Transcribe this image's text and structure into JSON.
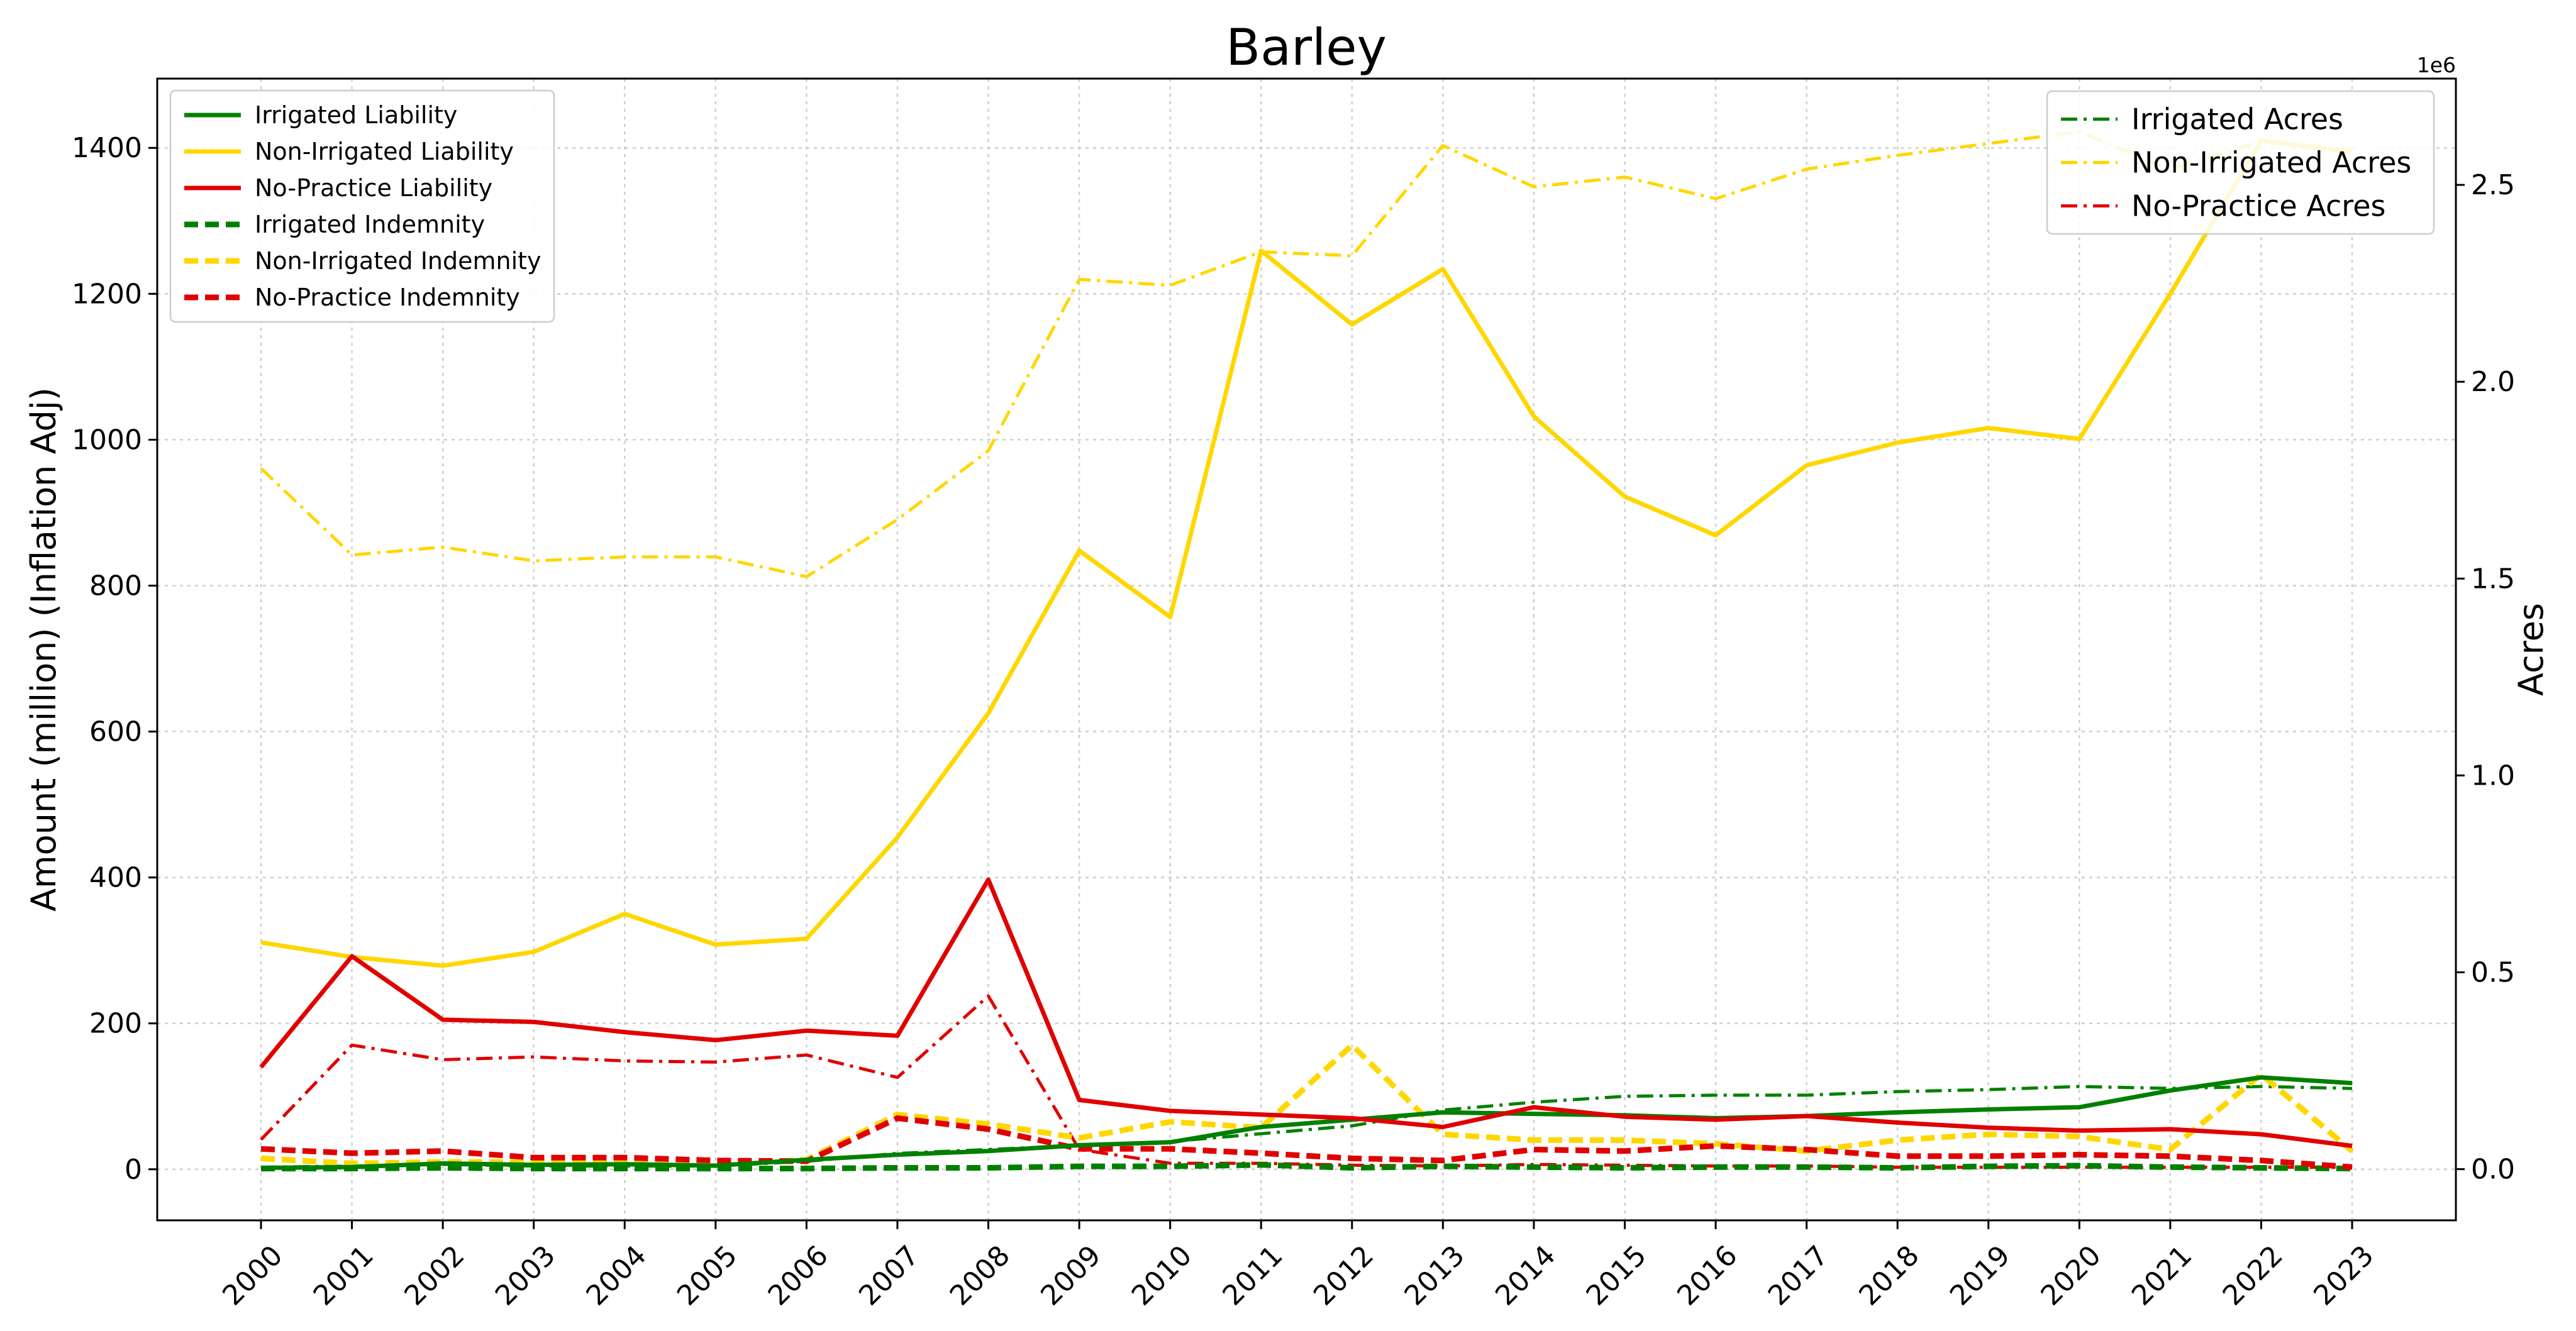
{
  "chart_data": {
    "type": "line",
    "title": "Barley",
    "ylabel": "Amount (million) (Inflation Adj)",
    "y2label": "Acres",
    "y2_offset_label": "1e6",
    "x": [
      "2000",
      "2001",
      "2002",
      "2003",
      "2004",
      "2005",
      "2006",
      "2007",
      "2008",
      "2009",
      "2010",
      "2011",
      "2012",
      "2013",
      "2014",
      "2015",
      "2016",
      "2017",
      "2018",
      "2019",
      "2020",
      "2021",
      "2022",
      "2023"
    ],
    "ylim": [
      -70,
      1495
    ],
    "y_ticks": [
      "0",
      "200",
      "400",
      "600",
      "800",
      "1000",
      "1200",
      "1400"
    ],
    "y2lim": [
      -130000,
      2770000
    ],
    "y2_ticks": [
      "0.0",
      "0.5",
      "1.0",
      "1.5",
      "2.0",
      "2.5"
    ],
    "grid": true,
    "series": [
      {
        "name": "Irrigated Liability",
        "axis": "left",
        "style": "solid",
        "color": "#008000",
        "values": [
          2,
          3,
          8,
          6,
          7,
          5,
          13,
          20,
          25,
          33,
          37,
          58,
          68,
          78,
          76,
          74,
          70,
          73,
          78,
          82,
          85,
          108,
          126,
          118
        ]
      },
      {
        "name": "Non-Irrigated Liability",
        "axis": "left",
        "style": "solid",
        "color": "#FFD700",
        "values": [
          311,
          291,
          279,
          298,
          350,
          308,
          316,
          455,
          625,
          848,
          757,
          1259,
          1158,
          1234,
          1032,
          922,
          869,
          965,
          996,
          1016,
          1001,
          1200,
          1410,
          1395
        ]
      },
      {
        "name": "No-Practice Liability",
        "axis": "left",
        "style": "solid",
        "color": "#E00000",
        "values": [
          140,
          292,
          205,
          202,
          188,
          177,
          190,
          183,
          397,
          95,
          80,
          75,
          70,
          58,
          85,
          72,
          68,
          73,
          64,
          57,
          53,
          55,
          48,
          32
        ]
      },
      {
        "name": "Irrigated Indemnity",
        "axis": "left",
        "style": "dashed",
        "color": "#008000",
        "values": [
          1,
          1,
          2,
          1,
          1,
          1,
          1,
          2,
          2,
          4,
          4,
          6,
          2,
          4,
          3,
          2,
          3,
          3,
          2,
          4,
          5,
          3,
          2,
          1
        ]
      },
      {
        "name": "Non-Irrigated Indemnity",
        "axis": "left",
        "style": "dashed",
        "color": "#FFD700",
        "values": [
          15,
          8,
          10,
          10,
          8,
          7,
          13,
          75,
          62,
          43,
          65,
          57,
          170,
          48,
          40,
          40,
          35,
          25,
          40,
          48,
          45,
          27,
          130,
          25
        ]
      },
      {
        "name": "No-Practice Indemnity",
        "axis": "left",
        "style": "dashed",
        "color": "#E00000",
        "values": [
          28,
          22,
          25,
          16,
          16,
          12,
          11,
          70,
          55,
          28,
          28,
          22,
          15,
          12,
          27,
          25,
          32,
          27,
          18,
          18,
          20,
          18,
          12,
          3
        ]
      },
      {
        "name": "Irrigated Acres",
        "axis": "right",
        "style": "dashdot",
        "color": "#008000",
        "values": [
          5000,
          8000,
          12000,
          8000,
          8000,
          8000,
          20000,
          40000,
          50000,
          60000,
          70000,
          90000,
          110000,
          150000,
          170000,
          185000,
          188000,
          188000,
          197000,
          202000,
          210000,
          205000,
          210000,
          205000
        ]
      },
      {
        "name": "Non-Irrigated Acres",
        "axis": "right",
        "style": "dashdot",
        "color": "#FFD700",
        "values": [
          1780000,
          1560000,
          1580000,
          1545000,
          1555000,
          1555000,
          1505000,
          1650000,
          1825000,
          2260000,
          2245000,
          2330000,
          2320000,
          2600000,
          2495000,
          2520000,
          2465000,
          2540000,
          2575000,
          2605000,
          2635000,
          2540000,
          2610000,
          2580000
        ]
      },
      {
        "name": "No-Practice Acres",
        "axis": "right",
        "style": "dashdot",
        "color": "#E00000",
        "values": [
          75000,
          315000,
          278000,
          285000,
          275000,
          272000,
          290000,
          233000,
          440000,
          50000,
          15000,
          15000,
          10000,
          8000,
          12000,
          10000,
          8000,
          8000,
          5000,
          5000,
          5000,
          5000,
          5000,
          5000
        ]
      }
    ],
    "legend_left": [
      "Irrigated Liability",
      "Non-Irrigated Liability",
      "No-Practice Liability",
      "Irrigated Indemnity",
      "Non-Irrigated Indemnity",
      "No-Practice Indemnity"
    ],
    "legend_right": [
      "Irrigated Acres",
      "Non-Irrigated Acres",
      "No-Practice Acres"
    ],
    "legend_left_placement": "upper-left",
    "legend_right_placement": "upper-right"
  }
}
